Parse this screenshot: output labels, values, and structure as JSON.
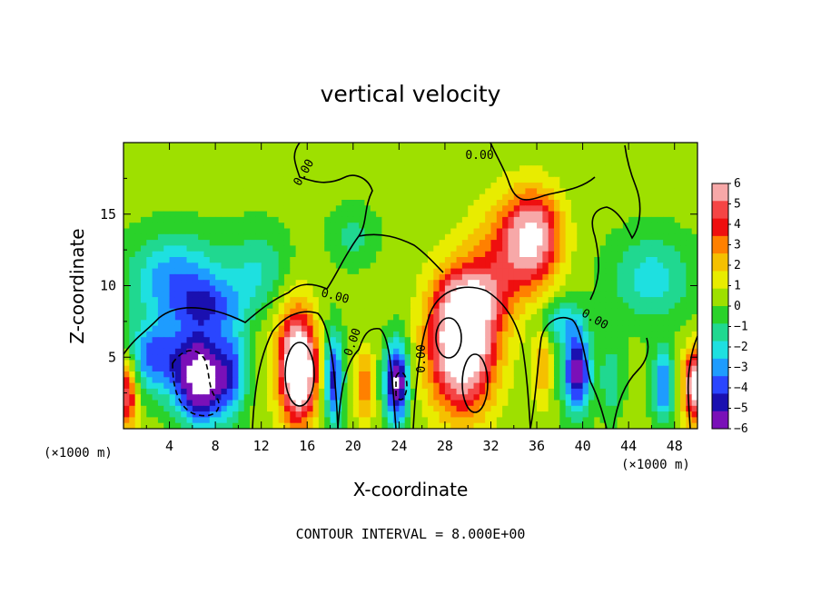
{
  "chart_data": {
    "type": "heatmap",
    "title": "vertical velocity",
    "xlabel": "X-coordinate",
    "ylabel": "Z-coordinate",
    "x_unit_left": "(×1000 m)",
    "x_unit_right": "(×1000 m)",
    "footer": "CONTOUR INTERVAL = 8.000E+00",
    "xlim": [
      0,
      50
    ],
    "ylim": [
      0,
      20
    ],
    "x_ticks": [
      "4",
      "8",
      "12",
      "16",
      "20",
      "24",
      "28",
      "32",
      "36",
      "40",
      "44",
      "48"
    ],
    "y_ticks": [
      "5",
      "10",
      "15"
    ],
    "colorbar": {
      "min": -6,
      "max": 6,
      "labels": [
        "6",
        "5",
        "4",
        "3",
        "2",
        "1",
        "0",
        "−1",
        "−2",
        "−3",
        "−4",
        "−5",
        "−6"
      ],
      "colors": [
        "#f7a8a8",
        "#f54545",
        "#ef0f0f",
        "#ff8000",
        "#f5c000",
        "#e8ec00",
        "#9ee000",
        "#2ad22a",
        "#20d890",
        "#1ee0e0",
        "#1e9cff",
        "#2a46ff",
        "#1a10b0",
        "#7a10b8"
      ]
    },
    "contour_labels": [
      "0.00",
      "0.00",
      "0.00",
      "0.00",
      "0.00",
      "0.00"
    ],
    "features": [
      {
        "x": 6.8,
        "z": 3.5,
        "w": -8,
        "rx": 2.2,
        "rz": 3.0
      },
      {
        "x": 14.8,
        "z": 5.5,
        "w": 2.5,
        "rx": 2.0,
        "rz": 5.0
      },
      {
        "x": 15.3,
        "z": 4.0,
        "w": 8,
        "rx": 1.4,
        "rz": 3.2
      },
      {
        "x": 2.8,
        "z": 5.0,
        "w": -4,
        "rx": 2.6,
        "rz": 2.5
      },
      {
        "x": 9.5,
        "z": 4.0,
        "w": -3,
        "rx": 1.3,
        "rz": 3.0
      },
      {
        "x": 18.3,
        "z": 3.5,
        "w": -5,
        "rx": 0.8,
        "rz": 3.2
      },
      {
        "x": 21.0,
        "z": 3.0,
        "w": 3,
        "rx": 0.8,
        "rz": 2.5
      },
      {
        "x": 23.8,
        "z": 3.2,
        "w": -7,
        "rx": 1.0,
        "rz": 2.8
      },
      {
        "x": 29.5,
        "z": 6.0,
        "w": 9,
        "rx": 2.8,
        "rz": 4.5
      },
      {
        "x": 30.5,
        "z": 9.0,
        "w": 3,
        "rx": 2.5,
        "rz": 2.0
      },
      {
        "x": 35.8,
        "z": 13.5,
        "w": 5.5,
        "rx": 2.3,
        "rz": 3.0
      },
      {
        "x": 33.5,
        "z": 12.0,
        "w": 3,
        "rx": 3.0,
        "rz": 4.0
      },
      {
        "x": 36.5,
        "z": 4.5,
        "w": 2,
        "rx": 0.9,
        "rz": 3.0
      },
      {
        "x": 39.5,
        "z": 4.0,
        "w": -6,
        "rx": 1.2,
        "rz": 2.8
      },
      {
        "x": 42.5,
        "z": 3.5,
        "w": -2,
        "rx": 1.0,
        "rz": 2.5
      },
      {
        "x": 47.0,
        "z": 3.0,
        "w": -4,
        "rx": 0.9,
        "rz": 2.5
      },
      {
        "x": 49.8,
        "z": 3.0,
        "w": 7,
        "rx": 1.0,
        "rz": 2.5
      },
      {
        "x": 0.3,
        "z": 2.5,
        "w": 5,
        "rx": 0.9,
        "rz": 2.5
      },
      {
        "x": 4.5,
        "z": 10.5,
        "w": -3.5,
        "rx": 4.0,
        "rz": 3.0
      },
      {
        "x": 7.5,
        "z": 8.5,
        "w": -3,
        "rx": 3.0,
        "rz": 2.0
      },
      {
        "x": 12.0,
        "z": 11.0,
        "w": -2,
        "rx": 3.0,
        "rz": 3.0
      },
      {
        "x": 46.0,
        "z": 10.5,
        "w": -2.5,
        "rx": 3.5,
        "rz": 3.0
      },
      {
        "x": 20.0,
        "z": 13.5,
        "w": -1.5,
        "rx": 2.0,
        "rz": 2.0
      },
      {
        "x": 38.0,
        "z": 7.5,
        "w": -2.5,
        "rx": 2.0,
        "rz": 1.5
      }
    ]
  }
}
